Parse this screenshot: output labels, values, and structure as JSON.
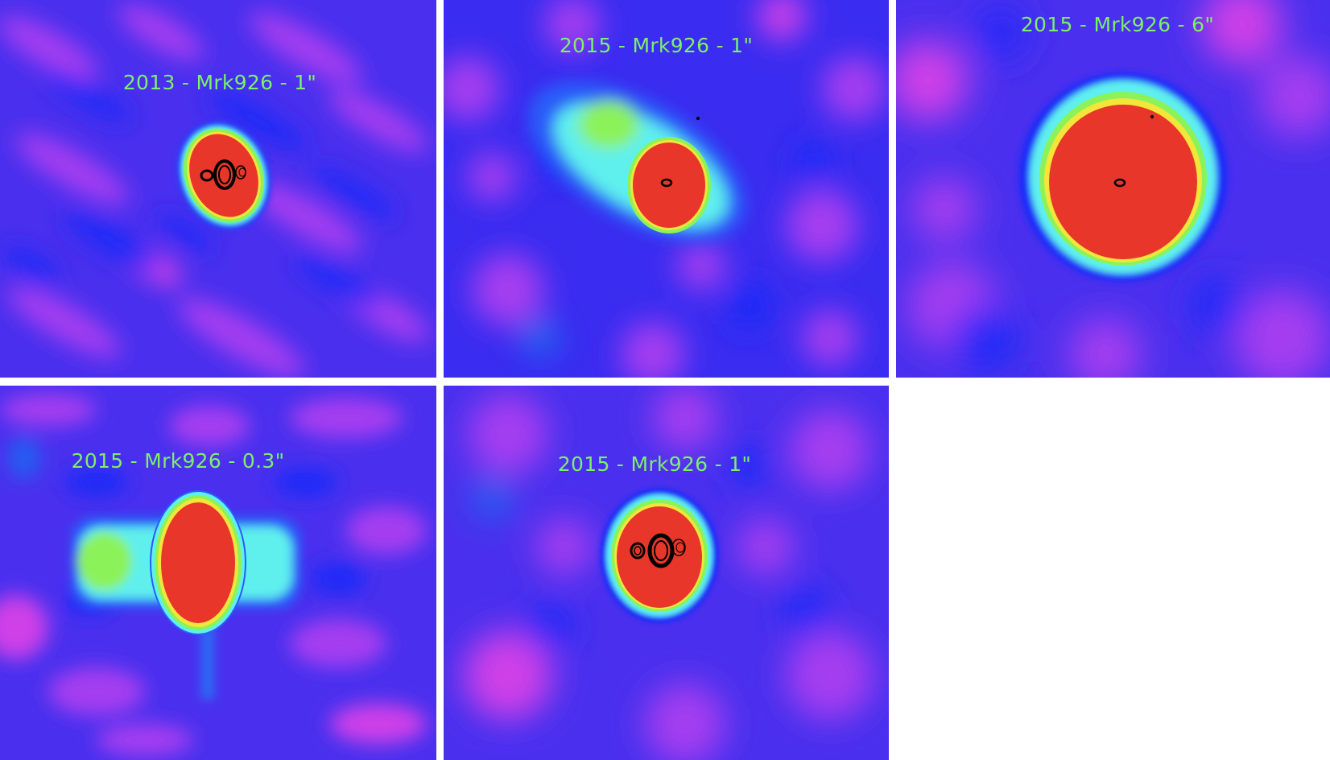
{
  "panels": [
    {
      "label": "2013 - Mrk926 - 1\""
    },
    {
      "label": "2015 - Mrk926 - 1\""
    },
    {
      "label": "2015 - Mrk926 - 6\""
    },
    {
      "label": "2015 - Mrk926 - 0.3\""
    },
    {
      "label": "2015 - Mrk926 - 1\""
    }
  ],
  "colors": {
    "background": "#3a2cf0",
    "noise_purple": "#a53cf0",
    "noise_magenta": "#cf40e8",
    "noise_blue": "#1d2cf8",
    "halo_cyan": "#5ff0ee",
    "ring_green": "#8cf25a",
    "ring_yellow": "#f2e63a",
    "core_red": "#e8362a",
    "contour_black": "#000000",
    "label_green": "#7cf06a"
  }
}
